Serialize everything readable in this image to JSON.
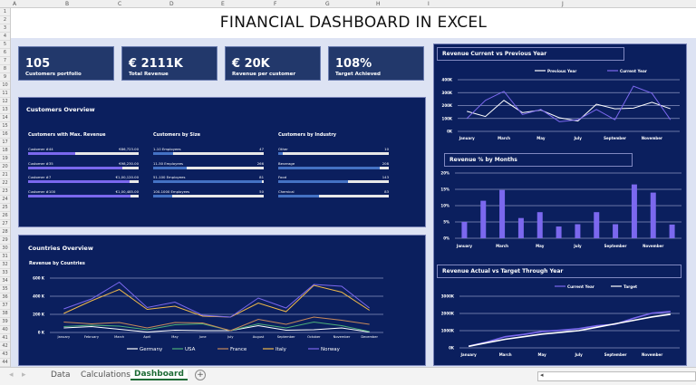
{
  "sheet": {
    "columns": [
      "A",
      "B",
      "C",
      "D",
      "E",
      "F",
      "G",
      "H",
      "I",
      "J"
    ],
    "rows": [
      "1",
      "2",
      "3",
      "4",
      "5",
      "6",
      "7",
      "8",
      "9",
      "10",
      "11",
      "12",
      "13",
      "14",
      "15",
      "16",
      "17",
      "18",
      "19",
      "20",
      "21",
      "22",
      "23",
      "24",
      "25",
      "26",
      "27",
      "28",
      "29",
      "30",
      "31",
      "32",
      "33",
      "34",
      "35",
      "36",
      "37",
      "38",
      "39",
      "40",
      "41",
      "42",
      "43",
      "44"
    ],
    "tabs": [
      "Data",
      "Calculations",
      "Dashboard"
    ],
    "active_tab": "Dashboard",
    "add_sheet": "+"
  },
  "title": "FINANCIAL DASHBOARD IN EXCEL",
  "kpis": [
    {
      "value": "105",
      "label": "Customers portfolio"
    },
    {
      "value": "€ 2111K",
      "label": "Total Revenue"
    },
    {
      "value": "€ 20K",
      "label": "Revenue per customer"
    },
    {
      "value": "108%",
      "label": "Target Achieved"
    }
  ],
  "customers_overview": {
    "title": "Customers Overview",
    "sections": [
      {
        "title": "Customers with Max. Revenue",
        "items": [
          {
            "label": "Customer #44",
            "value": "€86,723.00",
            "fill": 0.43
          },
          {
            "label": "Customer #35",
            "value": "€98,230.00",
            "fill": 0.85
          },
          {
            "label": "Customer #7",
            "value": "€1,00,120.00",
            "fill": 0.92
          },
          {
            "label": "Customer #100",
            "value": "€1,00,485.00",
            "fill": 0.93
          }
        ]
      },
      {
        "title": "Customers by Size",
        "items": [
          {
            "label": "1-10 Employees",
            "value": "47",
            "fill": 0.18
          },
          {
            "label": "11-50 Employees",
            "value": "266",
            "fill": 0.3
          },
          {
            "label": "51-100 Employees",
            "value": "81",
            "fill": 0.98
          },
          {
            "label": "100-1000 Employees",
            "value": "50",
            "fill": 0.17
          }
        ]
      },
      {
        "title": "Customers by Industry",
        "items": [
          {
            "label": "Other",
            "value": "10",
            "fill": 0.04
          },
          {
            "label": "Beverage",
            "value": "208",
            "fill": 0.92
          },
          {
            "label": "Food",
            "value": "143",
            "fill": 0.63
          },
          {
            "label": "Chemical",
            "value": "83",
            "fill": 0.37
          }
        ]
      }
    ]
  },
  "colors": {
    "purple": "#7b68ee",
    "blue": "#4472c4",
    "panel": "#0b1f5e",
    "kpi": "#22386b"
  },
  "chart_data": [
    {
      "id": "countries",
      "type": "line",
      "panel_title": "Countries Overview",
      "title": "Revenue by Countries",
      "categories": [
        "January",
        "February",
        "March",
        "April",
        "May",
        "June",
        "July",
        "August",
        "September",
        "October",
        "November",
        "December"
      ],
      "yticks": [
        "0 K",
        "200 K",
        "400 K",
        "600 K"
      ],
      "ylim": [
        0,
        600
      ],
      "legend": "bottom",
      "series": [
        {
          "name": "Germany",
          "color": "#ffffff",
          "values": [
            50,
            65,
            35,
            5,
            25,
            20,
            20,
            75,
            25,
            30,
            50,
            5
          ]
        },
        {
          "name": "USA",
          "color": "#4caf7a",
          "values": [
            65,
            80,
            70,
            30,
            85,
            95,
            20,
            95,
            50,
            115,
            75,
            10
          ]
        },
        {
          "name": "France",
          "color": "#c98a5a",
          "values": [
            115,
            95,
            110,
            50,
            110,
            105,
            20,
            145,
            90,
            170,
            135,
            90
          ]
        },
        {
          "name": "Italy",
          "color": "#f0b94a",
          "values": [
            210,
            350,
            475,
            255,
            290,
            180,
            170,
            325,
            230,
            520,
            445,
            245
          ]
        },
        {
          "name": "Norway",
          "color": "#7b68ee",
          "values": [
            260,
            370,
            555,
            275,
            335,
            190,
            170,
            380,
            270,
            530,
            510,
            270
          ]
        }
      ]
    },
    {
      "id": "cvp",
      "type": "line",
      "title": "Revenue Current vs Previous Year",
      "categories": [
        "January",
        "February",
        "March",
        "April",
        "May",
        "June",
        "July",
        "August",
        "September",
        "October",
        "November",
        "December"
      ],
      "xticklabels": [
        "January",
        "March",
        "May",
        "July",
        "September",
        "November"
      ],
      "yticks": [
        "0K",
        "100K",
        "200K",
        "300K",
        "400K"
      ],
      "ylim": [
        0,
        400
      ],
      "legend": "top",
      "series": [
        {
          "name": "Previous Year",
          "color": "#ffffff",
          "values": [
            155,
            115,
            240,
            145,
            165,
            105,
            80,
            210,
            175,
            180,
            225,
            175
          ]
        },
        {
          "name": "Current Year",
          "color": "#7b68ee",
          "values": [
            100,
            240,
            310,
            130,
            170,
            75,
            90,
            170,
            90,
            350,
            295,
            90
          ]
        }
      ]
    },
    {
      "id": "pct",
      "type": "bar",
      "title": "Revenue % by Months",
      "categories": [
        "January",
        "February",
        "March",
        "April",
        "May",
        "June",
        "July",
        "August",
        "September",
        "October",
        "November",
        "December"
      ],
      "xticklabels": [
        "January",
        "March",
        "May",
        "July",
        "September",
        "November"
      ],
      "yticks": [
        "0%",
        "5%",
        "10%",
        "15%",
        "20%"
      ],
      "ylim": [
        0,
        20
      ],
      "values": [
        5,
        11.5,
        14.8,
        6.2,
        8,
        3.6,
        4.3,
        8,
        4.3,
        16.5,
        14,
        4.2
      ],
      "color": "#7b68ee"
    },
    {
      "id": "avt",
      "type": "line",
      "title": "Revenue Actual vs Target Through Year",
      "categories": [
        "January",
        "February",
        "March",
        "April",
        "May",
        "June",
        "July",
        "August",
        "September",
        "October",
        "November",
        "December"
      ],
      "xticklabels": [
        "January",
        "March",
        "May",
        "July",
        "September",
        "November"
      ],
      "yticks": [
        "0K",
        "1000K",
        "2000K",
        "3000K"
      ],
      "ylim": [
        0,
        3000
      ],
      "legend": "top",
      "series": [
        {
          "name": "Current Year",
          "color": "#7b68ee",
          "values": [
            100,
            340,
            650,
            780,
            950,
            1025,
            1115,
            1285,
            1375,
            1725,
            2020,
            2110
          ]
        },
        {
          "name": "Target",
          "color": "#ffffff",
          "values": [
            90,
            300,
            500,
            650,
            800,
            900,
            1000,
            1200,
            1400,
            1600,
            1800,
            1950
          ]
        }
      ]
    }
  ]
}
